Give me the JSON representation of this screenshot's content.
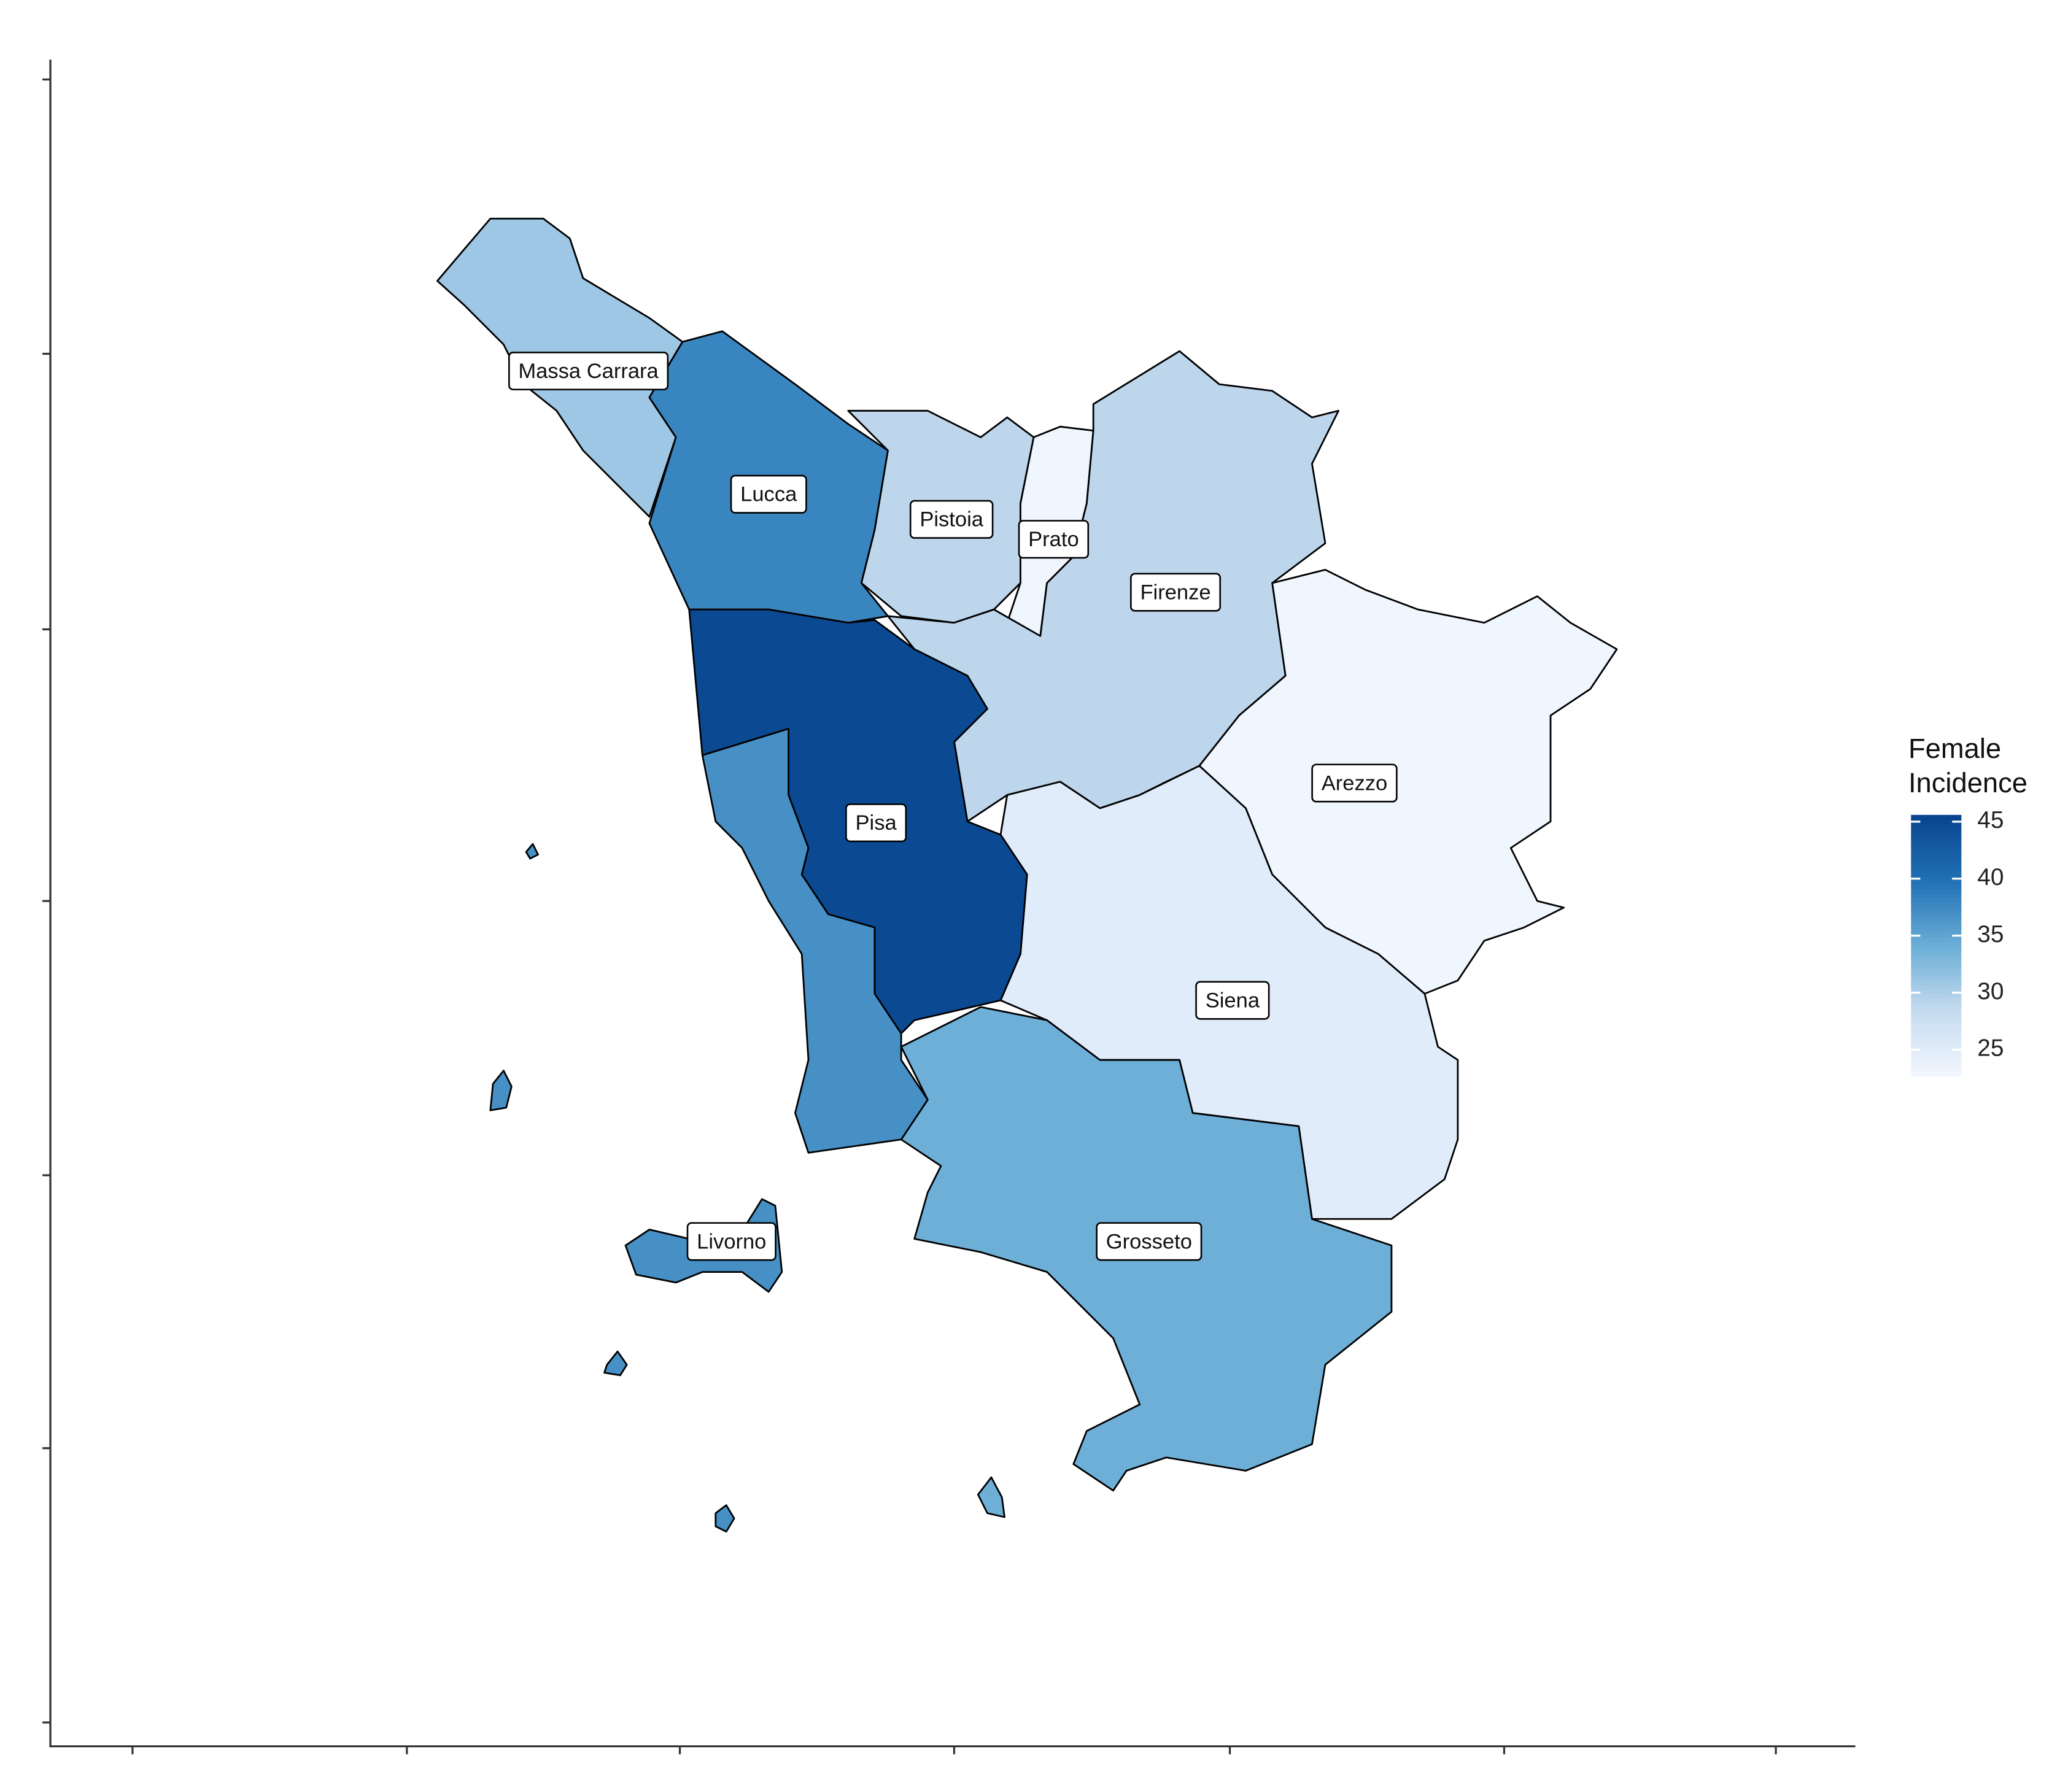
{
  "map": {
    "type": "choropleth",
    "legend": {
      "title": [
        "Female",
        "Incidence"
      ],
      "limits": [
        22.7,
        45.6
      ],
      "ticks": [
        25,
        30,
        35,
        40,
        45
      ],
      "palette": [
        "#f2f7ff",
        "#c6dbef",
        "#6baed6",
        "#2171b5",
        "#08458f"
      ]
    },
    "regions": [
      {
        "name": "Massa Carrara",
        "value": 31
      },
      {
        "name": "Lucca",
        "value": 38
      },
      {
        "name": "Pistoia",
        "value": 29
      },
      {
        "name": "Prato",
        "value": 23
      },
      {
        "name": "Firenze",
        "value": 29
      },
      {
        "name": "Arezzo",
        "value": 23
      },
      {
        "name": "Siena",
        "value": 25
      },
      {
        "name": "Grosseto",
        "value": 34
      },
      {
        "name": "Pisa",
        "value": 45
      },
      {
        "name": "Livorno",
        "value": 37
      }
    ]
  }
}
